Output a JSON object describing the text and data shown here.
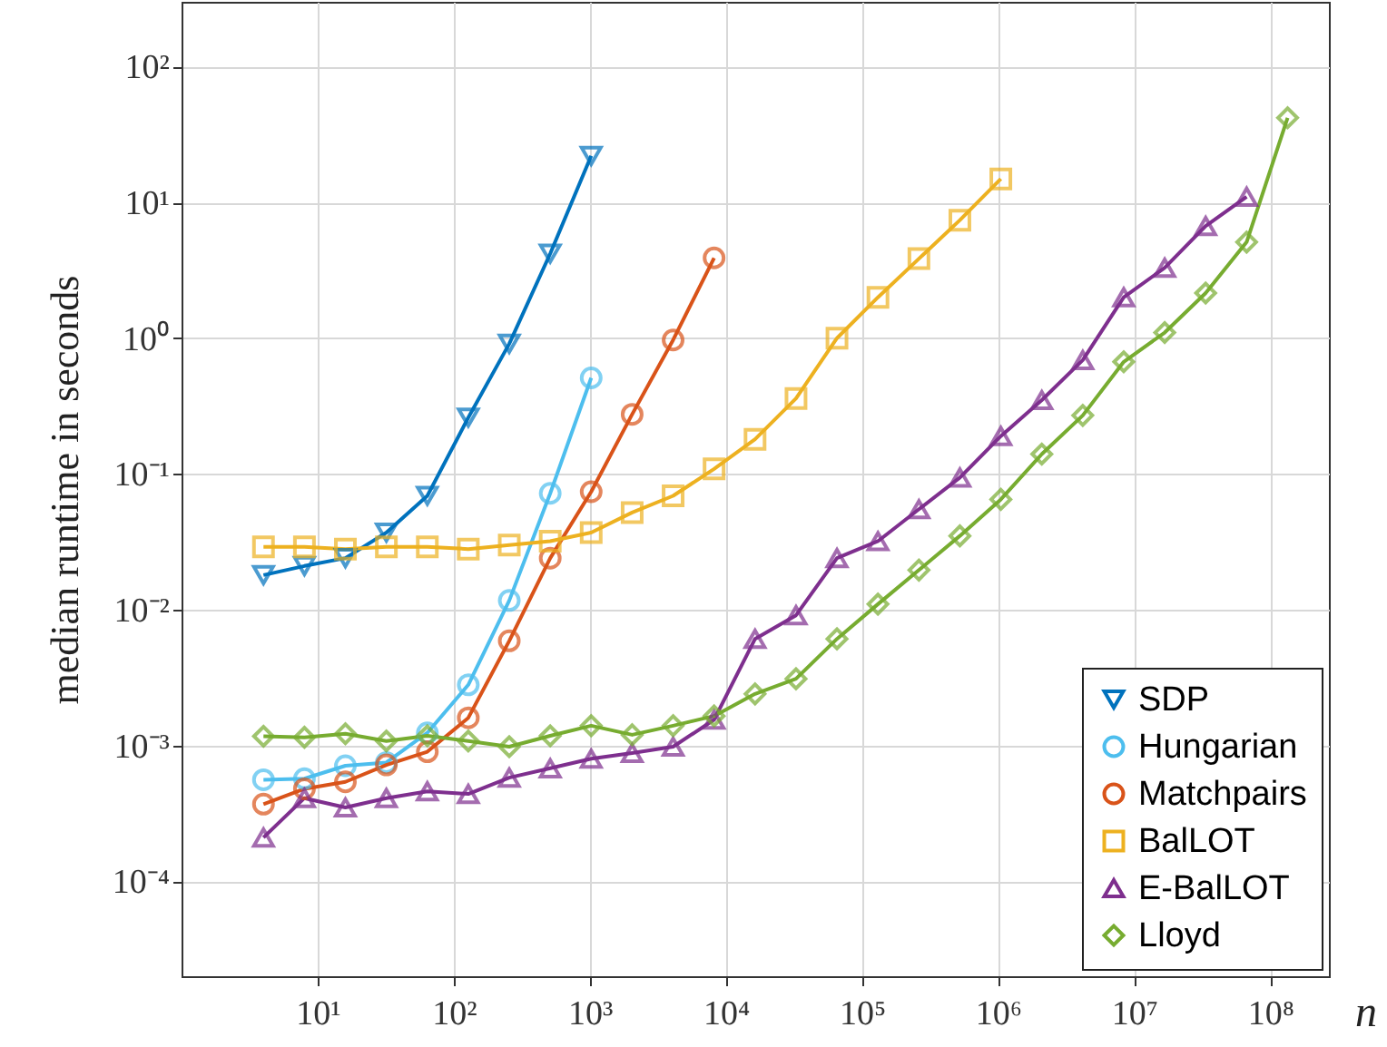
{
  "chart_data": {
    "type": "line",
    "xlabel": "n",
    "ylabel": "median runtime in seconds",
    "log": "xy",
    "grid": true,
    "legend": "bottom right",
    "xlim": [
      1,
      270000000
    ],
    "ylim": [
      2e-05,
      300
    ],
    "xticks": [
      {
        "value": 10,
        "label": "10¹"
      },
      {
        "value": 100,
        "label": "10²"
      },
      {
        "value": 1000,
        "label": "10³"
      },
      {
        "value": 10000,
        "label": "10⁴"
      },
      {
        "value": 100000,
        "label": "10⁵"
      },
      {
        "value": 1000000,
        "label": "10⁶"
      },
      {
        "value": 10000000,
        "label": "10⁷"
      },
      {
        "value": 100000000,
        "label": "10⁸"
      }
    ],
    "yticks": [
      {
        "value": 0.0001,
        "label": "10⁻⁴"
      },
      {
        "value": 0.001,
        "label": "10⁻³"
      },
      {
        "value": 0.01,
        "label": "10⁻²"
      },
      {
        "value": 0.1,
        "label": "10⁻¹"
      },
      {
        "value": 1,
        "label": "10⁰"
      },
      {
        "value": 10,
        "label": "10¹"
      },
      {
        "value": 100,
        "label": "10²"
      }
    ],
    "series": [
      {
        "name": "SDP",
        "color": "#0072bd",
        "marker": "triangle-down",
        "x": [
          4,
          8,
          16,
          32,
          64,
          128,
          256,
          512,
          1024
        ],
        "values": [
          0.018,
          0.021,
          0.024,
          0.037,
          0.069,
          0.26,
          0.91,
          4.2,
          22
        ]
      },
      {
        "name": "Hungarian",
        "color": "#4dbeee",
        "marker": "circle",
        "x": [
          4,
          8,
          16,
          32,
          64,
          128,
          256,
          512,
          1024
        ],
        "values": [
          0.00056,
          0.00057,
          0.00071,
          0.00075,
          0.00124,
          0.0028,
          0.0117,
          0.072,
          0.51
        ]
      },
      {
        "name": "Matchpairs",
        "color": "#d95319",
        "marker": "circle",
        "x": [
          4,
          8,
          16,
          32,
          64,
          128,
          256,
          512,
          1024,
          2048,
          4096,
          8192
        ],
        "values": [
          0.00037,
          0.00048,
          0.00054,
          0.00072,
          0.0009,
          0.0016,
          0.0059,
          0.024,
          0.074,
          0.275,
          0.97,
          3.9
        ]
      },
      {
        "name": "BalLOT",
        "color": "#edb120",
        "marker": "square",
        "x": [
          4,
          8,
          16,
          32,
          64,
          128,
          256,
          512,
          1024,
          2048,
          4096,
          8192,
          16384,
          32768,
          65536,
          131072,
          262144,
          524288,
          1048576
        ],
        "values": [
          0.029,
          0.029,
          0.028,
          0.029,
          0.029,
          0.028,
          0.03,
          0.032,
          0.037,
          0.052,
          0.069,
          0.109,
          0.18,
          0.36,
          1.0,
          2.0,
          3.85,
          7.4,
          14.9
        ]
      },
      {
        "name": "E-BalLOT",
        "color": "#7e2f8e",
        "marker": "triangle",
        "x": [
          4,
          8,
          16,
          32,
          64,
          128,
          256,
          512,
          1024,
          2048,
          4096,
          8192,
          16384,
          32768,
          65536,
          131072,
          262144,
          524288,
          1048576,
          2097152,
          4194304,
          8388608,
          16777216,
          33554432,
          67108864
        ],
        "values": [
          0.00021,
          0.00041,
          0.00035,
          0.00041,
          0.00046,
          0.00044,
          0.00058,
          0.00068,
          0.0008,
          0.00088,
          0.00098,
          0.00155,
          0.0061,
          0.0091,
          0.024,
          0.032,
          0.055,
          0.094,
          0.19,
          0.35,
          0.69,
          2.0,
          3.3,
          6.7,
          11
        ]
      },
      {
        "name": "Lloyd",
        "color": "#77ac30",
        "marker": "diamond",
        "x": [
          4,
          8,
          16,
          32,
          64,
          128,
          256,
          512,
          1024,
          2048,
          4096,
          8192,
          16384,
          32768,
          65536,
          131072,
          262144,
          524288,
          1048576,
          2097152,
          4194304,
          8388608,
          16777216,
          33554432,
          67108864,
          134217728
        ],
        "values": [
          0.00117,
          0.00115,
          0.00122,
          0.00108,
          0.00118,
          0.00108,
          0.00098,
          0.00118,
          0.0014,
          0.0012,
          0.0014,
          0.00165,
          0.0024,
          0.0031,
          0.0061,
          0.011,
          0.0196,
          0.035,
          0.065,
          0.14,
          0.27,
          0.67,
          1.1,
          2.15,
          5.1,
          42
        ]
      }
    ]
  }
}
